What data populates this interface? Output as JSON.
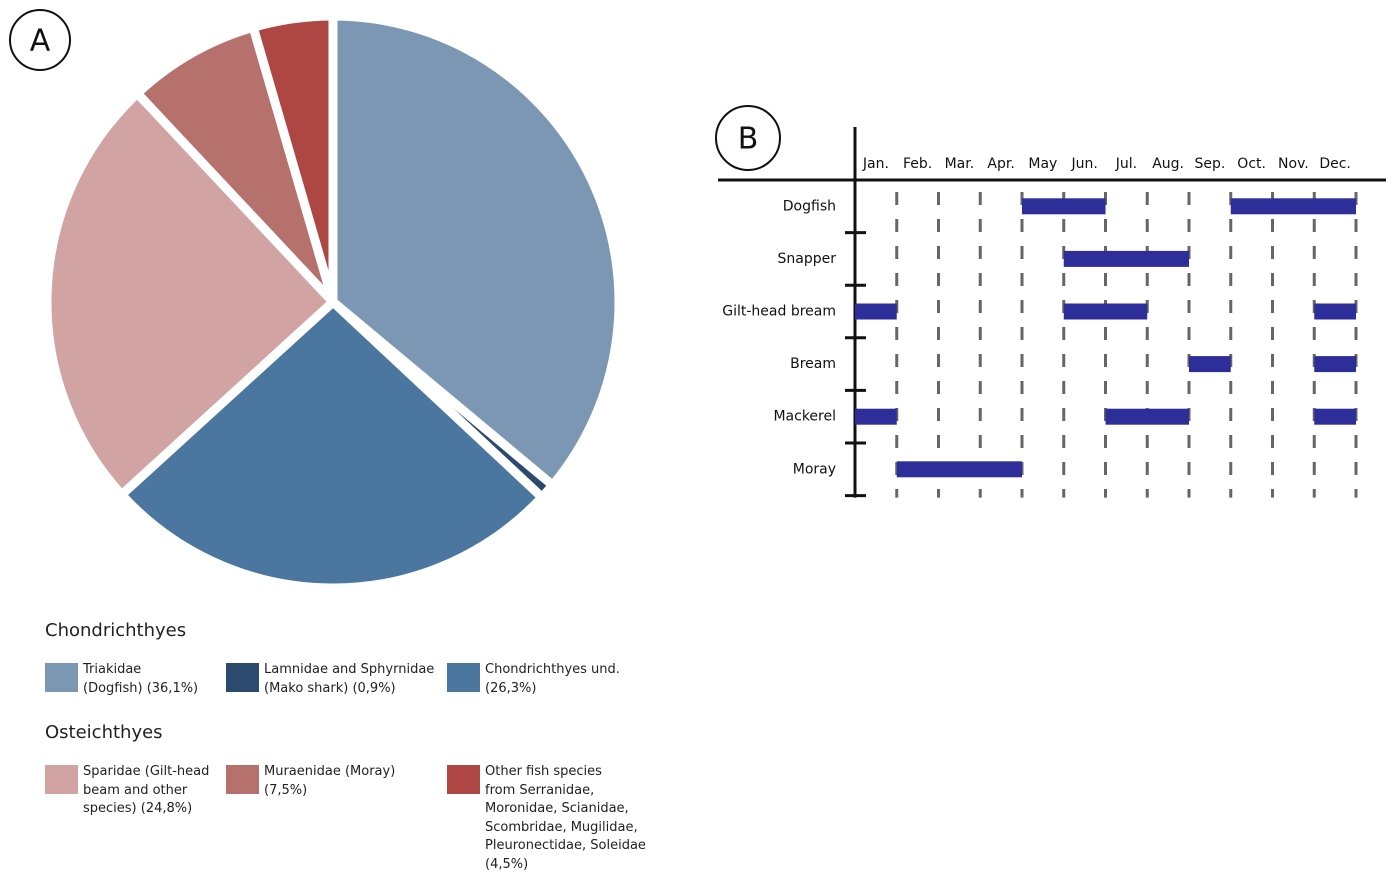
{
  "chart_data": [
    {
      "type": "pie",
      "label": "A",
      "groups": [
        {
          "title": "Chondrichthyes",
          "series": [
            {
              "name": "Triakidae\n(Dogfish) (36,1%)",
              "color": "#7b97b3",
              "value": 36.1
            },
            {
              "name": "Lamnidae and Sphyrnidae\n(Mako shark) (0,9%)",
              "color": "#2c4a6e",
              "value": 0.9
            },
            {
              "name": "Chondrichthyes und.\n(26,3%)",
              "color": "#4a76a0",
              "value": 26.3
            }
          ]
        },
        {
          "title": "Osteichthyes",
          "series": [
            {
              "name": "Sparidae (Gilt-head\nbeam and other\nspecies) (24,8%)",
              "color": "#d1a3a2",
              "value": 24.8
            },
            {
              "name": "Muraenidae (Moray)\n(7,5%)",
              "color": "#b6716c",
              "value": 7.5
            },
            {
              "name": "Other fish species\nfrom Serranidae,\nMoronidae, Scianidae,\nScombridae, Mugilidae,\nPleuronectidae, Soleidae\n(4,5%)",
              "color": "#ae4644",
              "value": 4.5
            }
          ]
        }
      ]
    },
    {
      "type": "gantt",
      "label": "B",
      "color": "#2e2e9a",
      "categories": [
        "Jan.",
        "Feb.",
        "Mar.",
        "Apr.",
        "May",
        "Jun.",
        "Jul.",
        "Aug.",
        "Sep.",
        "Oct.",
        "Nov.",
        "Dec."
      ],
      "xlim": [
        0,
        12
      ],
      "rows": [
        {
          "name": "Dogfish",
          "bars": [
            [
              4,
              6
            ],
            [
              9,
              12
            ]
          ]
        },
        {
          "name": "Snapper",
          "bars": [
            [
              5,
              8
            ]
          ]
        },
        {
          "name": "Gilt-head bream",
          "bars": [
            [
              0,
              1
            ],
            [
              5,
              7
            ],
            [
              11,
              12
            ]
          ]
        },
        {
          "name": "Bream",
          "bars": [
            [
              8,
              9
            ],
            [
              11,
              12
            ]
          ]
        },
        {
          "name": "Mackerel",
          "bars": [
            [
              0,
              1
            ],
            [
              6,
              8
            ],
            [
              11,
              12
            ]
          ]
        },
        {
          "name": "Moray",
          "bars": [
            [
              1,
              4
            ]
          ]
        }
      ]
    }
  ]
}
